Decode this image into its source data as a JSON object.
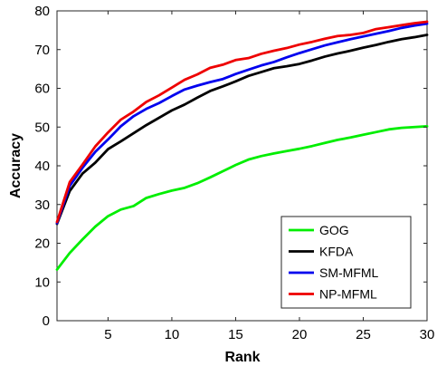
{
  "chart_data": {
    "type": "line",
    "title": "",
    "xlabel": "Rank",
    "ylabel": "Accuracy",
    "xlim": [
      1,
      30
    ],
    "ylim": [
      0,
      80
    ],
    "xticks": [
      5,
      10,
      15,
      20,
      25,
      30
    ],
    "yticks": [
      0,
      10,
      20,
      30,
      40,
      50,
      60,
      70,
      80
    ],
    "grid": false,
    "legend_position": "bottom-right",
    "x": [
      1,
      2,
      3,
      4,
      5,
      6,
      7,
      8,
      9,
      10,
      11,
      12,
      13,
      14,
      15,
      16,
      17,
      18,
      19,
      20,
      21,
      22,
      23,
      24,
      25,
      26,
      27,
      28,
      29,
      30
    ],
    "series": [
      {
        "name": "GOG",
        "color": "#00ee00",
        "values": [
          13.2,
          17.5,
          21.0,
          24.3,
          27.0,
          28.7,
          29.6,
          31.7,
          32.7,
          33.6,
          34.3,
          35.5,
          37.0,
          38.6,
          40.2,
          41.6,
          42.5,
          43.2,
          43.8,
          44.4,
          45.1,
          45.9,
          46.7,
          47.3,
          48.0,
          48.7,
          49.4,
          49.8,
          50.0,
          50.2
        ]
      },
      {
        "name": "KFDA",
        "color": "#000000",
        "values": [
          25.0,
          33.5,
          38.0,
          40.8,
          44.3,
          46.3,
          48.4,
          50.5,
          52.4,
          54.3,
          55.8,
          57.6,
          59.3,
          60.5,
          61.8,
          63.2,
          64.2,
          65.2,
          65.7,
          66.3,
          67.2,
          68.2,
          69.0,
          69.7,
          70.5,
          71.2,
          72.0,
          72.7,
          73.2,
          73.8
        ]
      },
      {
        "name": "SM-MFML",
        "color": "#0000ee",
        "values": [
          25.2,
          34.8,
          39.5,
          43.6,
          46.8,
          50.2,
          52.8,
          54.7,
          56.2,
          58.0,
          59.7,
          60.7,
          61.6,
          62.4,
          63.7,
          64.8,
          65.9,
          66.8,
          68.0,
          69.1,
          70.1,
          71.1,
          71.9,
          72.7,
          73.4,
          74.1,
          74.8,
          75.6,
          76.2,
          76.7
        ]
      },
      {
        "name": "NP-MFML",
        "color": "#ee0000",
        "values": [
          25.5,
          35.8,
          40.3,
          45.0,
          48.6,
          51.9,
          54.0,
          56.5,
          58.2,
          60.2,
          62.2,
          63.6,
          65.3,
          66.1,
          67.3,
          67.8,
          68.9,
          69.7,
          70.4,
          71.3,
          72.0,
          72.8,
          73.5,
          73.8,
          74.3,
          75.3,
          75.8,
          76.3,
          76.8,
          77.2
        ]
      }
    ]
  }
}
